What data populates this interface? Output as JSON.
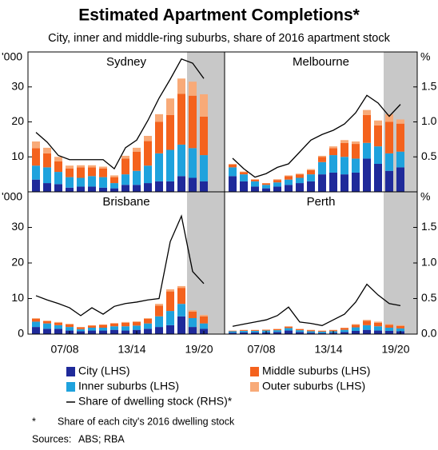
{
  "title": "Estimated Apartment Completions*",
  "subtitle": "City, inner and middle-ring suburbs, share of 2016 apartment stock",
  "footnote": {
    "mark": "*",
    "text": "Share of each city's 2016 dwelling stock"
  },
  "sources": {
    "label": "Sources:",
    "text": "ABS; RBA"
  },
  "chart_data": [
    {
      "type": "bar",
      "title": "Sydney",
      "ylabel": "'000",
      "categories": [
        null,
        null,
        null,
        null,
        null,
        null,
        null,
        null,
        null,
        null,
        null,
        null,
        null,
        null,
        null,
        null
      ],
      "ylim": [
        0,
        40
      ],
      "yticks": [
        10,
        20,
        30
      ],
      "y2lim": [
        0,
        2
      ],
      "series": [
        {
          "name": "City (LHS)",
          "color": "#1f2a9a",
          "values": [
            3.5,
            2.5,
            2.2,
            1.2,
            1.5,
            1.5,
            1.2,
            1,
            2,
            2,
            2.5,
            3,
            3,
            4.5,
            4,
            3
          ]
        },
        {
          "name": "Inner suburbs (LHS)",
          "color": "#1fa2dd",
          "values": [
            4,
            4.5,
            3.5,
            3,
            2.5,
            3,
            3,
            1.5,
            3,
            4,
            5,
            8,
            9,
            9,
            8.5,
            7.5
          ]
        },
        {
          "name": "Middle suburbs (LHS)",
          "color": "#f4621d",
          "values": [
            5,
            4,
            3,
            2.5,
            3,
            2.5,
            2.5,
            1.7,
            4.5,
            5.5,
            7,
            9,
            10,
            14.5,
            15,
            11
          ]
        },
        {
          "name": "Outer suburbs (LHS)",
          "color": "#f8aa78",
          "values": [
            1.9,
            1.6,
            1.3,
            0.8,
            0.6,
            0.6,
            0.5,
            0.5,
            0.8,
            1.1,
            1.5,
            2.2,
            4.7,
            4.4,
            4,
            6.4
          ]
        },
        {
          "name": "Share of dwelling stock (RHS)*",
          "color": "#000000",
          "type": "line",
          "axis": "y2",
          "values": [
            0.85,
            0.71,
            0.52,
            0.46,
            0.46,
            0.46,
            0.46,
            0.33,
            0.63,
            0.74,
            1.02,
            1.34,
            1.61,
            1.9,
            1.84,
            1.62
          ]
        }
      ]
    },
    {
      "type": "bar",
      "title": "Melbourne",
      "y2label": "%",
      "categories": [
        null,
        null,
        null,
        null,
        null,
        null,
        null,
        null,
        null,
        null,
        null,
        null,
        null,
        null,
        null,
        null
      ],
      "ylim": [
        0,
        40
      ],
      "y2lim": [
        0,
        2
      ],
      "y2ticks": [
        0.5,
        1.5,
        {
          "value": 1,
          "label": "1.0"
        }
      ],
      "series": [
        {
          "values": [
            4.5,
            3,
            1.5,
            1,
            1.5,
            2,
            2.5,
            3,
            5,
            5.5,
            5,
            5.5,
            9.5,
            8,
            6,
            7
          ]
        },
        {
          "values": [
            2.5,
            2,
            1.5,
            1,
            1.2,
            1.5,
            1.5,
            2,
            3.5,
            5,
            5,
            4,
            4.5,
            5,
            5,
            4.5
          ]
        },
        {
          "values": [
            0.8,
            0.6,
            0.5,
            0.4,
            0.7,
            1,
            1,
            1.2,
            1.5,
            2,
            4,
            4.2,
            8,
            6,
            9,
            8
          ]
        },
        {
          "values": [
            0.2,
            0.2,
            0.1,
            0.1,
            0.2,
            0.2,
            0.2,
            0.3,
            0.3,
            0.5,
            0.8,
            0.7,
            1.4,
            1.4,
            2.2,
            1.2
          ]
        },
        {
          "type": "line",
          "axis": "y2",
          "values": [
            0.48,
            0.33,
            0.21,
            0.26,
            0.35,
            0.4,
            0.57,
            0.74,
            0.82,
            0.88,
            0.97,
            1.13,
            1.38,
            1.27,
            1.08,
            1.25
          ]
        }
      ]
    },
    {
      "type": "bar",
      "title": "Brisbane",
      "ylabel": "'000",
      "categories": [
        null,
        null,
        null,
        "07/08",
        null,
        null,
        null,
        null,
        null,
        "13/14",
        null,
        null,
        null,
        null,
        null,
        "19/20"
      ],
      "ylim": [
        0,
        40
      ],
      "yticks": [
        0,
        10,
        20,
        30
      ],
      "y2lim": [
        0,
        2
      ],
      "series": [
        {
          "values": [
            2,
            1.5,
            1.5,
            1,
            0.8,
            1,
            1,
            1.2,
            1,
            1.2,
            1.5,
            2,
            2.5,
            5,
            2,
            1.5
          ]
        },
        {
          "values": [
            1.5,
            1.5,
            1,
            1,
            0.6,
            0.8,
            0.8,
            1,
            1.2,
            1.2,
            1.5,
            3,
            4,
            3.5,
            2.5,
            1.5
          ]
        },
        {
          "values": [
            0.8,
            0.6,
            0.7,
            0.7,
            0.5,
            0.6,
            0.8,
            0.8,
            1,
            1,
            1.3,
            3,
            5.5,
            4.5,
            1.8,
            2
          ]
        },
        {
          "values": [
            0.2,
            0.2,
            0.2,
            0.2,
            0.1,
            0.1,
            0.1,
            0.1,
            0.2,
            0.2,
            0.2,
            0.5,
            0.6,
            0.5,
            0.4,
            0.4
          ]
        },
        {
          "type": "line",
          "axis": "y2",
          "values": [
            0.54,
            0.48,
            0.43,
            0.37,
            0.26,
            0.37,
            0.28,
            0.39,
            0.43,
            0.45,
            0.48,
            0.5,
            1.3,
            1.66,
            0.88,
            0.71
          ]
        }
      ]
    },
    {
      "type": "bar",
      "title": "Perth",
      "y2label": "%",
      "categories": [
        null,
        null,
        null,
        "07/08",
        null,
        null,
        null,
        null,
        null,
        "13/14",
        null,
        null,
        null,
        null,
        null,
        "19/20"
      ],
      "ylim": [
        0,
        40
      ],
      "y2lim": [
        0,
        2
      ],
      "y2ticks": [
        {
          "value": 0,
          "label": "0.0"
        },
        0.5,
        {
          "value": 1,
          "label": "1.0"
        },
        1.5
      ],
      "series": [
        {
          "values": [
            0.4,
            0.5,
            0.5,
            0.5,
            0.6,
            1,
            0.6,
            0.4,
            0.3,
            0.4,
            0.6,
            0.9,
            1.2,
            1,
            0.9,
            0.8
          ]
        },
        {
          "values": [
            0.4,
            0.4,
            0.4,
            0.5,
            0.5,
            0.7,
            0.5,
            0.4,
            0.4,
            0.4,
            0.6,
            1,
            1.3,
            1.2,
            0.9,
            0.8
          ]
        },
        {
          "values": [
            0.15,
            0.2,
            0.2,
            0.2,
            0.3,
            0.4,
            0.3,
            0.3,
            0.2,
            0.3,
            0.5,
            0.7,
            1.2,
            1,
            0.8,
            0.7
          ]
        },
        {
          "values": [
            0.05,
            0.1,
            0.1,
            0.1,
            0.1,
            0.1,
            0.1,
            0.1,
            0.1,
            0.1,
            0.1,
            0.2,
            0.3,
            0.3,
            0.2,
            0.2
          ]
        },
        {
          "type": "line",
          "axis": "y2",
          "values": [
            0.11,
            0.14,
            0.17,
            0.2,
            0.26,
            0.38,
            0.17,
            0.15,
            0.12,
            0.2,
            0.28,
            0.45,
            0.7,
            0.55,
            0.43,
            0.4
          ]
        }
      ]
    }
  ]
}
